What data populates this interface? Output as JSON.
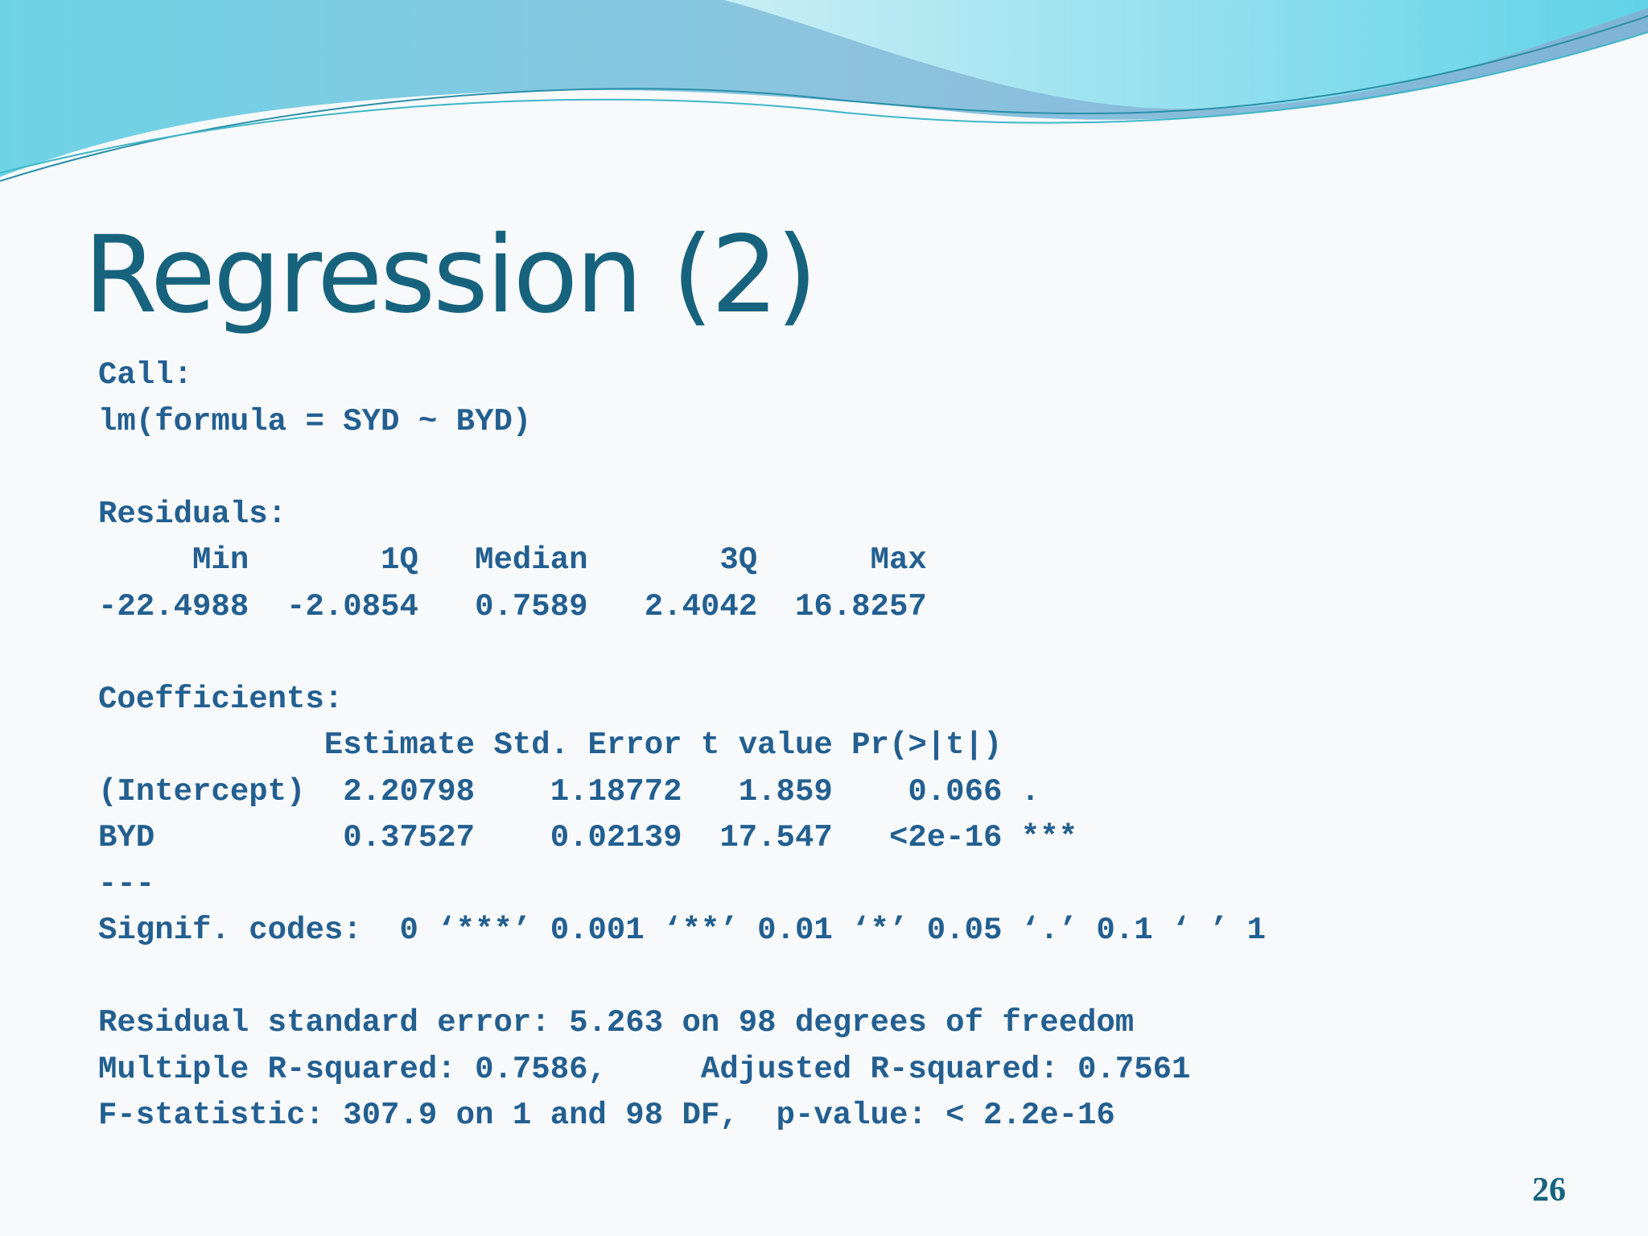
{
  "title": "Regression (2)",
  "blocks": [
    {
      "lines": [
        "Call:",
        "lm(formula = SYD ~ BYD)"
      ]
    },
    {
      "lines": [
        "Residuals:",
        "     Min       1Q   Median       3Q      Max",
        "-22.4988  -2.0854   0.7589   2.4042  16.8257"
      ]
    },
    {
      "lines": [
        "Coefficients:",
        "            Estimate Std. Error t value Pr(>|t|)",
        "(Intercept)  2.20798    1.18772   1.859    0.066 .",
        "BYD          0.37527    0.02139  17.547   <2e-16 ***",
        "---",
        "Signif. codes:  0 ‘***’ 0.001 ‘**’ 0.01 ‘*’ 0.05 ‘.’ 0.1 ‘ ’ 1"
      ]
    },
    {
      "lines": [
        "Residual standard error: 5.263 on 98 degrees of freedom",
        "Multiple R-squared: 0.7586,     Adjusted R-squared: 0.7561",
        "F-statistic: 307.9 on 1 and 98 DF,  p-value: < 2.2e-16"
      ]
    }
  ],
  "page_number": "26"
}
